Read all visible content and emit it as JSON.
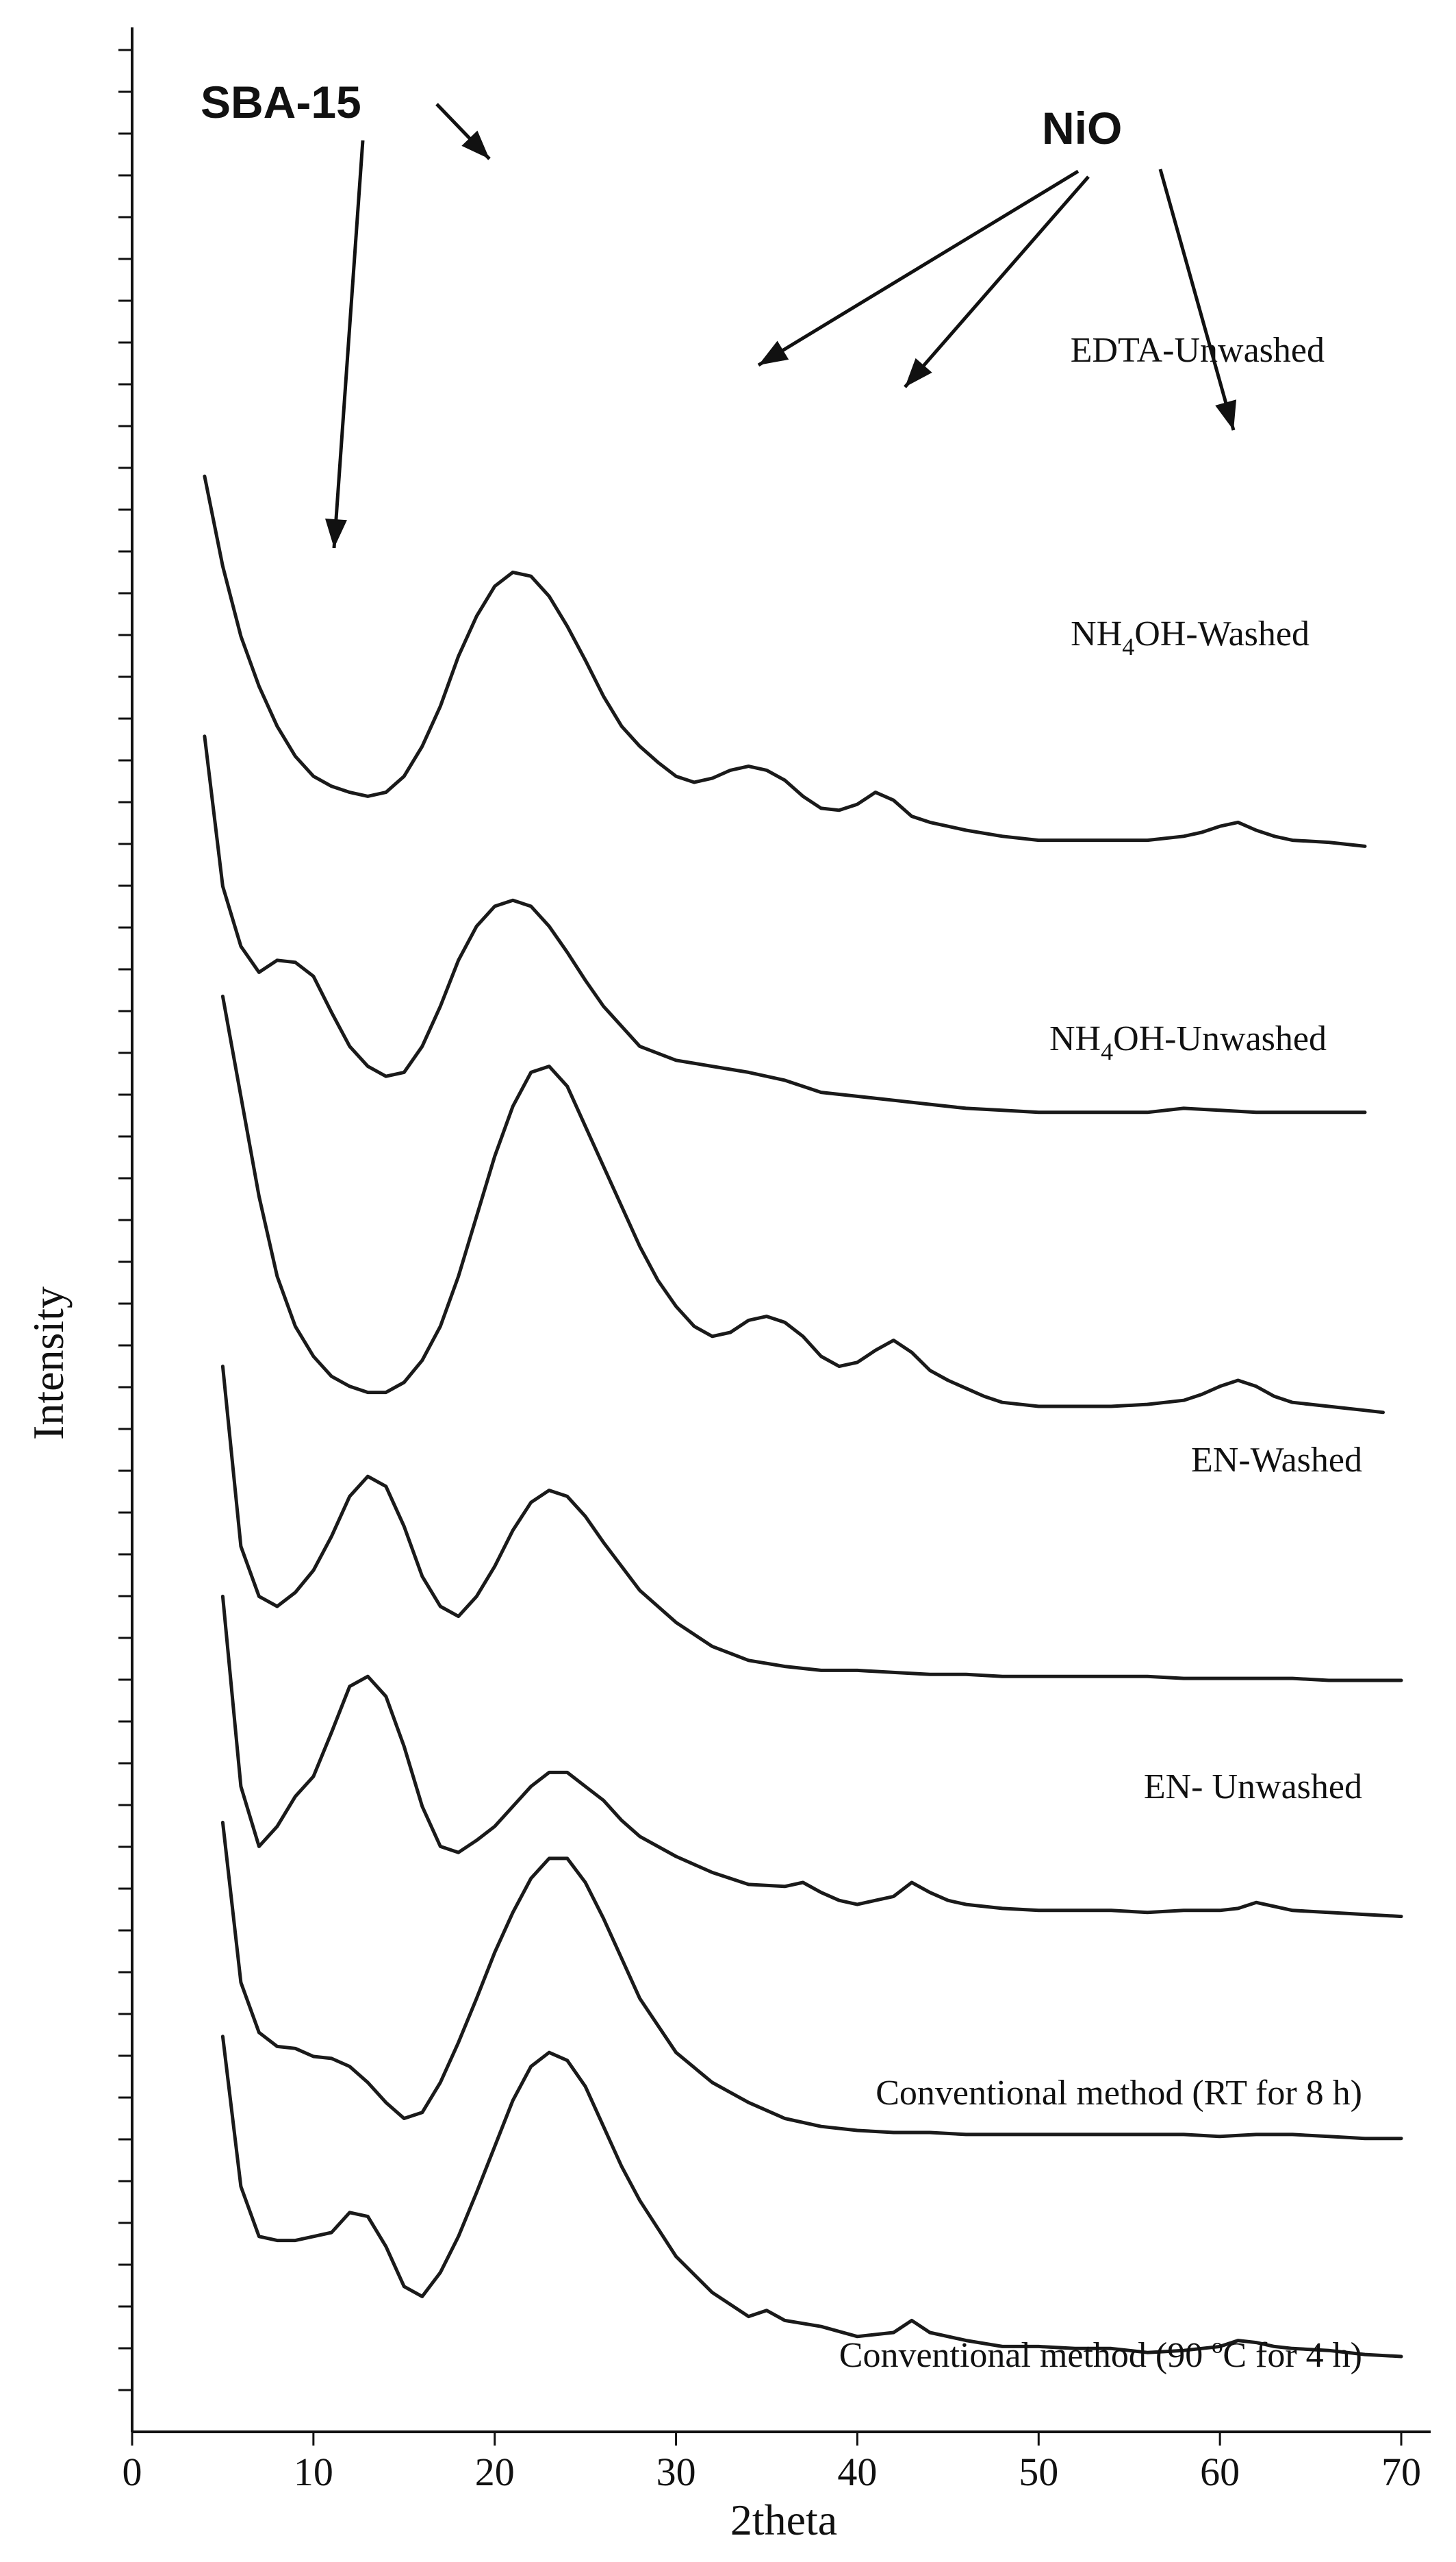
{
  "chart_data": {
    "type": "line",
    "xlabel": "2theta",
    "ylabel": "Intensity",
    "xlim": [
      0,
      70
    ],
    "x_ticks": [
      "0",
      "10",
      "20",
      "30",
      "40",
      "50",
      "60",
      "70"
    ],
    "y_tick_labels": "none",
    "stacked_offset": true,
    "series": [
      {
        "name": "EDTA-Unwashed",
        "label_parts": [
          "EDTA-Unwashed"
        ],
        "offset": 7.4,
        "x": [
          4,
          5,
          6,
          7,
          8,
          9,
          10,
          11,
          12,
          13,
          14,
          15,
          16,
          17,
          18,
          19,
          20,
          21,
          22,
          23,
          24,
          25,
          26,
          27,
          28,
          29,
          30,
          31,
          32,
          33,
          34,
          35,
          36,
          37,
          38,
          39,
          40,
          41,
          42,
          43,
          44,
          45,
          46,
          48,
          50,
          52,
          54,
          56,
          58,
          59,
          60,
          61,
          62,
          63,
          64,
          66,
          68
        ],
        "y": [
          2.0,
          1.55,
          1.2,
          0.95,
          0.75,
          0.6,
          0.5,
          0.45,
          0.42,
          0.4,
          0.42,
          0.5,
          0.65,
          0.85,
          1.1,
          1.3,
          1.45,
          1.52,
          1.5,
          1.4,
          1.25,
          1.08,
          0.9,
          0.75,
          0.65,
          0.57,
          0.5,
          0.47,
          0.49,
          0.53,
          0.55,
          0.53,
          0.48,
          0.4,
          0.34,
          0.33,
          0.36,
          0.42,
          0.38,
          0.3,
          0.27,
          0.25,
          0.23,
          0.2,
          0.18,
          0.18,
          0.18,
          0.18,
          0.2,
          0.22,
          0.25,
          0.27,
          0.23,
          0.2,
          0.18,
          0.17,
          0.15
        ]
      },
      {
        "name": "NH4OH-Washed",
        "label_parts": [
          "NH",
          "4",
          "OH-Washed"
        ],
        "offset": 6.1,
        "x": [
          4,
          5,
          6,
          7,
          8,
          9,
          10,
          11,
          12,
          13,
          14,
          15,
          16,
          17,
          18,
          19,
          20,
          21,
          22,
          23,
          24,
          25,
          26,
          27,
          28,
          30,
          32,
          34,
          36,
          38,
          40,
          42,
          44,
          46,
          48,
          50,
          52,
          54,
          56,
          58,
          60,
          62,
          64,
          66,
          68
        ],
        "y": [
          2.0,
          1.25,
          0.95,
          0.82,
          0.88,
          0.87,
          0.8,
          0.62,
          0.45,
          0.35,
          0.3,
          0.32,
          0.45,
          0.65,
          0.88,
          1.05,
          1.15,
          1.18,
          1.15,
          1.05,
          0.92,
          0.78,
          0.65,
          0.55,
          0.45,
          0.38,
          0.35,
          0.32,
          0.28,
          0.22,
          0.2,
          0.18,
          0.16,
          0.14,
          0.13,
          0.12,
          0.12,
          0.12,
          0.12,
          0.14,
          0.13,
          0.12,
          0.12,
          0.12,
          0.12
        ]
      },
      {
        "name": "NH4OH-Unwashed",
        "label_parts": [
          "NH",
          "4",
          "OH-Unwashed"
        ],
        "offset": 4.6,
        "x": [
          5,
          6,
          7,
          8,
          9,
          10,
          11,
          12,
          13,
          14,
          15,
          16,
          17,
          18,
          19,
          20,
          21,
          22,
          23,
          24,
          25,
          26,
          27,
          28,
          29,
          30,
          31,
          32,
          33,
          34,
          35,
          36,
          37,
          38,
          39,
          40,
          41,
          42,
          43,
          44,
          45,
          46,
          47,
          48,
          50,
          52,
          54,
          56,
          58,
          59,
          60,
          61,
          62,
          63,
          64,
          66,
          68,
          69
        ],
        "y": [
          2.2,
          1.7,
          1.2,
          0.8,
          0.55,
          0.4,
          0.3,
          0.25,
          0.22,
          0.22,
          0.27,
          0.38,
          0.55,
          0.8,
          1.1,
          1.4,
          1.65,
          1.82,
          1.85,
          1.75,
          1.55,
          1.35,
          1.15,
          0.95,
          0.78,
          0.65,
          0.55,
          0.5,
          0.52,
          0.58,
          0.6,
          0.57,
          0.5,
          0.4,
          0.35,
          0.37,
          0.43,
          0.48,
          0.42,
          0.33,
          0.28,
          0.24,
          0.2,
          0.17,
          0.15,
          0.15,
          0.15,
          0.16,
          0.18,
          0.21,
          0.25,
          0.28,
          0.25,
          0.2,
          0.17,
          0.15,
          0.13,
          0.12
        ]
      },
      {
        "name": "EN-Washed",
        "label_parts": [
          "EN-Washed"
        ],
        "offset": 3.35,
        "x": [
          5,
          6,
          7,
          8,
          9,
          10,
          11,
          12,
          13,
          14,
          15,
          16,
          17,
          18,
          19,
          20,
          21,
          22,
          23,
          24,
          25,
          26,
          27,
          28,
          30,
          32,
          34,
          36,
          38,
          40,
          42,
          44,
          46,
          48,
          50,
          52,
          54,
          56,
          58,
          60,
          62,
          64,
          66,
          68,
          70
        ],
        "y": [
          1.6,
          0.7,
          0.45,
          0.4,
          0.47,
          0.58,
          0.75,
          0.95,
          1.05,
          1.0,
          0.8,
          0.55,
          0.4,
          0.35,
          0.45,
          0.6,
          0.78,
          0.92,
          0.98,
          0.95,
          0.85,
          0.72,
          0.6,
          0.48,
          0.32,
          0.2,
          0.13,
          0.1,
          0.08,
          0.08,
          0.07,
          0.06,
          0.06,
          0.05,
          0.05,
          0.05,
          0.05,
          0.05,
          0.04,
          0.04,
          0.04,
          0.04,
          0.03,
          0.03,
          0.03
        ]
      },
      {
        "name": "EN- Unwashed",
        "label_parts": [
          "EN- Unwashed"
        ],
        "offset": 2.2,
        "x": [
          5,
          6,
          7,
          8,
          9,
          10,
          11,
          12,
          13,
          14,
          15,
          16,
          17,
          18,
          19,
          20,
          21,
          22,
          23,
          24,
          25,
          26,
          27,
          28,
          30,
          32,
          34,
          36,
          37,
          38,
          39,
          40,
          41,
          42,
          43,
          44,
          45,
          46,
          48,
          50,
          52,
          54,
          56,
          58,
          60,
          61,
          62,
          63,
          64,
          66,
          68,
          70
        ],
        "y": [
          1.6,
          0.65,
          0.35,
          0.45,
          0.6,
          0.7,
          0.92,
          1.15,
          1.2,
          1.1,
          0.85,
          0.55,
          0.35,
          0.32,
          0.38,
          0.45,
          0.55,
          0.65,
          0.72,
          0.72,
          0.65,
          0.58,
          0.48,
          0.4,
          0.3,
          0.22,
          0.16,
          0.15,
          0.17,
          0.12,
          0.08,
          0.06,
          0.08,
          0.1,
          0.17,
          0.12,
          0.08,
          0.06,
          0.04,
          0.03,
          0.03,
          0.03,
          0.02,
          0.03,
          0.03,
          0.04,
          0.07,
          0.05,
          0.03,
          0.02,
          0.01,
          0.0
        ]
      },
      {
        "name": "Conventional method (RT for 8 h)",
        "label_parts": [
          "Conventional method (RT for 8 h)"
        ],
        "offset": 1.07,
        "x": [
          5,
          6,
          7,
          8,
          9,
          10,
          11,
          12,
          13,
          14,
          15,
          16,
          17,
          18,
          19,
          20,
          21,
          22,
          23,
          24,
          25,
          26,
          27,
          28,
          30,
          32,
          34,
          36,
          38,
          40,
          42,
          44,
          46,
          48,
          50,
          52,
          54,
          56,
          58,
          60,
          62,
          64,
          66,
          68,
          70
        ],
        "y": [
          1.6,
          0.8,
          0.55,
          0.48,
          0.47,
          0.43,
          0.42,
          0.38,
          0.3,
          0.2,
          0.12,
          0.15,
          0.3,
          0.5,
          0.72,
          0.95,
          1.15,
          1.32,
          1.42,
          1.42,
          1.3,
          1.12,
          0.92,
          0.72,
          0.45,
          0.3,
          0.2,
          0.12,
          0.08,
          0.06,
          0.05,
          0.05,
          0.04,
          0.04,
          0.04,
          0.04,
          0.04,
          0.04,
          0.04,
          0.03,
          0.04,
          0.04,
          0.03,
          0.02,
          0.02
        ]
      },
      {
        "name": "Conventional method (90 ºC for 4 h)",
        "label_parts": [
          "Conventional method (90 ºC for 4 h)"
        ],
        "offset": 0.0,
        "x": [
          5,
          6,
          7,
          8,
          9,
          10,
          11,
          12,
          13,
          14,
          15,
          16,
          17,
          18,
          19,
          20,
          21,
          22,
          23,
          24,
          25,
          26,
          27,
          28,
          30,
          32,
          34,
          35,
          36,
          38,
          40,
          42,
          43,
          44,
          46,
          48,
          50,
          52,
          54,
          56,
          58,
          60,
          61,
          62,
          63,
          64,
          66,
          68,
          70
        ],
        "y": [
          1.6,
          0.85,
          0.6,
          0.58,
          0.58,
          0.6,
          0.62,
          0.72,
          0.7,
          0.55,
          0.35,
          0.3,
          0.42,
          0.6,
          0.82,
          1.05,
          1.28,
          1.45,
          1.52,
          1.48,
          1.35,
          1.15,
          0.95,
          0.78,
          0.5,
          0.32,
          0.2,
          0.23,
          0.18,
          0.15,
          0.1,
          0.12,
          0.18,
          0.12,
          0.08,
          0.05,
          0.05,
          0.04,
          0.04,
          0.02,
          0.03,
          0.05,
          0.08,
          0.07,
          0.05,
          0.04,
          0.03,
          0.01,
          0.0
        ]
      }
    ],
    "annotations": [
      {
        "text": "SBA-15",
        "refers_to": "SBA-15 peaks near 2theta 10 and 20"
      },
      {
        "text": "NiO",
        "refers_to": "NiO peaks near 2theta 34, 42 and 61"
      }
    ]
  }
}
